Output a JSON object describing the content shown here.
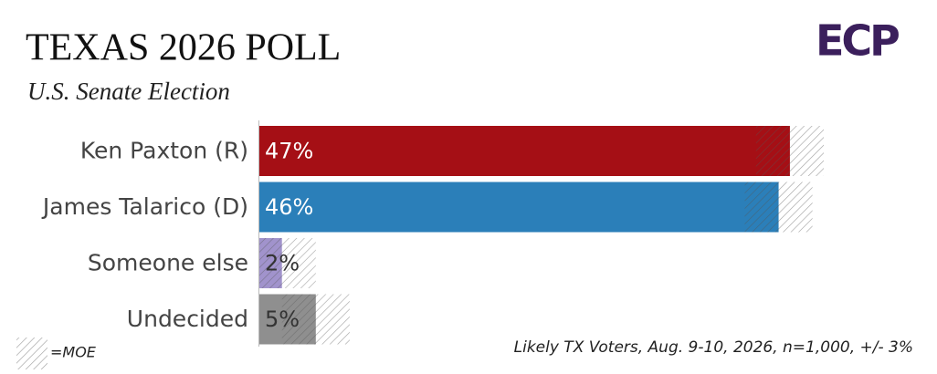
{
  "chart_data": {
    "type": "bar",
    "title": "TEXAS 2026 POLL",
    "subtitle": "U.S. Senate Election",
    "logo": "ECP",
    "categories": [
      "Ken Paxton (R)",
      "James Talarico (D)",
      "Someone else",
      "Undecided"
    ],
    "values": [
      47,
      46,
      2,
      5
    ],
    "value_labels": [
      "47%",
      "46%",
      "2%",
      "5%"
    ],
    "colors": [
      "#a50f15",
      "#2b7fb9",
      "#a193cc",
      "#8f8f8f"
    ],
    "moe": 3,
    "legend_label": "=MOE",
    "note": "Likely TX Voters, Aug. 9-10, 2026, n=1,000, +/- 3%"
  }
}
